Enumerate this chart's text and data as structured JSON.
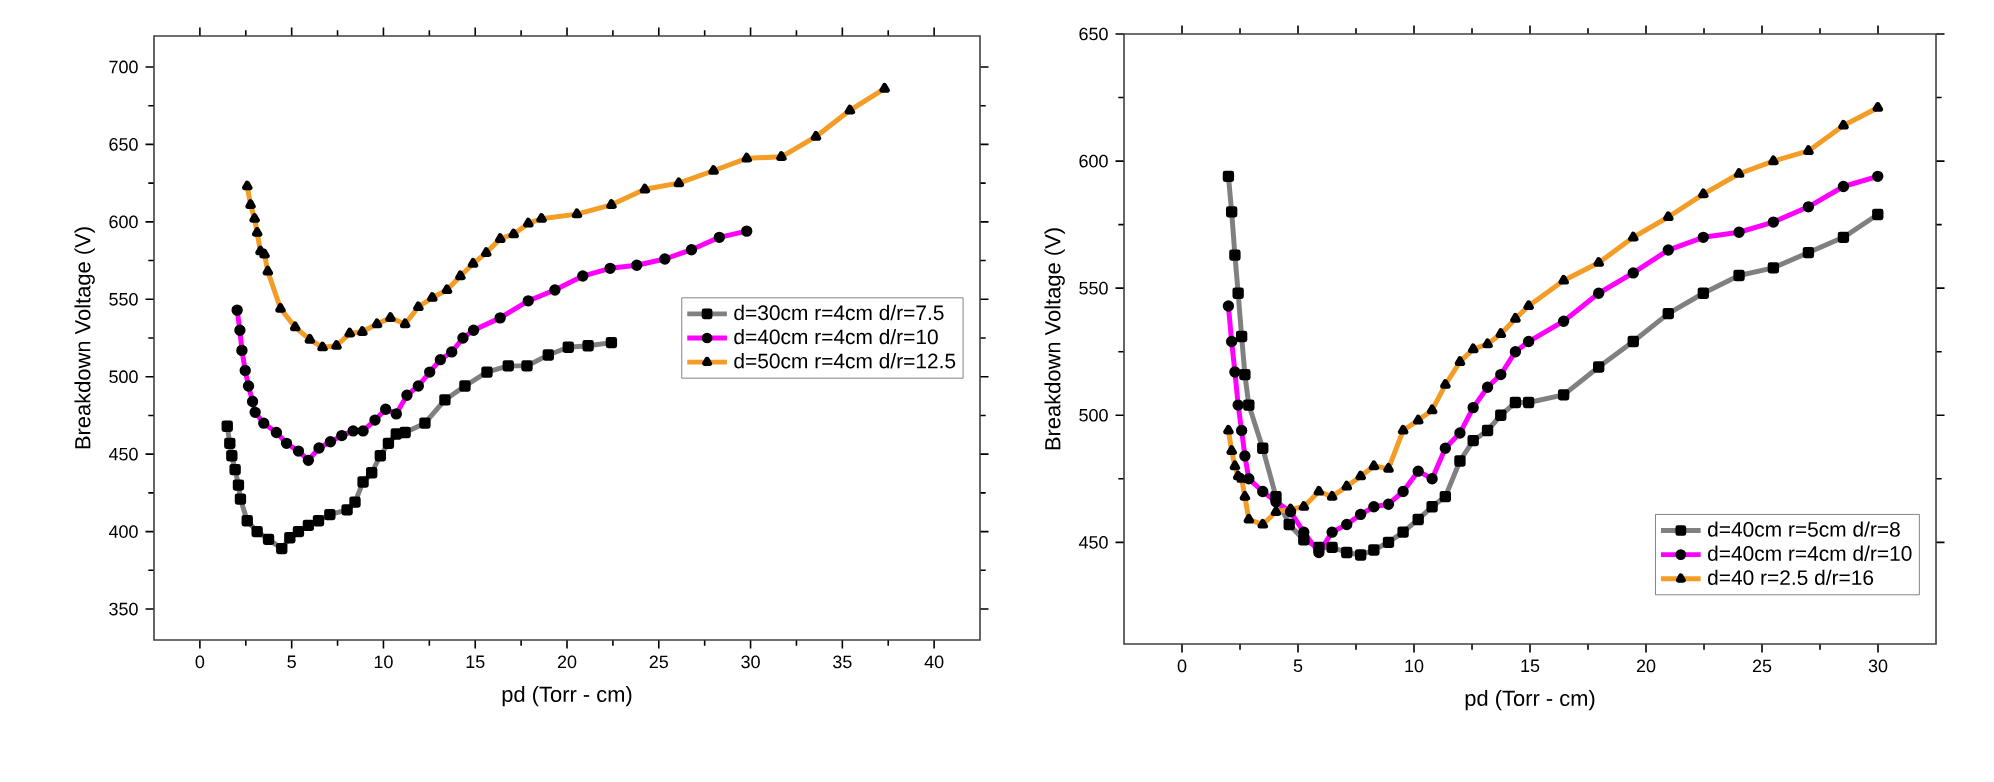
{
  "chart_data": [
    {
      "type": "line",
      "xlabel": "pd  (Torr - cm)",
      "ylabel": "Breakdown Voltage  (V)",
      "xlim": [
        -2.5,
        42.5
      ],
      "ylim": [
        330,
        720
      ],
      "xticks": [
        0,
        5,
        10,
        15,
        20,
        25,
        30,
        35,
        40
      ],
      "yticks": [
        350,
        400,
        450,
        500,
        550,
        600,
        650,
        700
      ],
      "legend": "right",
      "line_style": "solid",
      "series": [
        {
          "name": "d=30cm r=4cm d/r=7.5",
          "color": "#808080",
          "marker": "square",
          "x": [
            1.49,
            1.63,
            1.74,
            1.92,
            2.1,
            2.21,
            2.58,
            3.12,
            3.74,
            4.46,
            4.9,
            5.37,
            5.91,
            6.46,
            7.08,
            8.02,
            8.45,
            8.89,
            9.36,
            9.83,
            10.27,
            10.7,
            11.18,
            12.26,
            13.35,
            14.44,
            15.64,
            16.8,
            17.82,
            18.98,
            20.07,
            21.15,
            22.42
          ],
          "values": [
            468,
            457,
            449,
            440,
            430,
            421,
            407,
            400,
            395,
            389,
            396,
            400,
            404,
            407,
            411,
            414,
            419,
            432,
            438,
            449,
            457,
            463,
            464,
            470,
            485,
            494,
            503,
            507,
            507,
            514,
            519,
            520,
            522
          ]
        },
        {
          "name": "d=40cm r=4cm d/r=10",
          "color": "#ff00ff",
          "marker": "circle",
          "x": [
            2.03,
            2.18,
            2.29,
            2.47,
            2.65,
            2.87,
            3.01,
            3.48,
            4.17,
            4.72,
            5.37,
            5.91,
            6.49,
            7.11,
            7.73,
            8.35,
            8.89,
            9.54,
            10.12,
            10.7,
            11.28,
            11.9,
            12.52,
            13.1,
            13.72,
            14.33,
            14.91,
            16.36,
            17.89,
            19.34,
            20.86,
            22.35,
            23.8,
            25.33,
            26.78,
            28.3,
            29.79
          ],
          "values": [
            543,
            530,
            517,
            504,
            494,
            484,
            477,
            470,
            464,
            457,
            452,
            446,
            454,
            458,
            462,
            465,
            465,
            472,
            479,
            476,
            488,
            494,
            503,
            511,
            516,
            525,
            530,
            538,
            549,
            556,
            565,
            570,
            572,
            576,
            582,
            590,
            594
          ]
        },
        {
          "name": "d=50cm r=4cm d/r=12.5",
          "color": "#f39c26",
          "marker": "triangle",
          "x": [
            2.58,
            2.76,
            2.98,
            3.12,
            3.3,
            3.52,
            3.7,
            4.39,
            5.19,
            5.99,
            6.68,
            7.44,
            8.16,
            8.85,
            9.65,
            10.38,
            11.18,
            11.9,
            12.66,
            13.46,
            14.19,
            14.88,
            15.6,
            16.36,
            17.09,
            17.89,
            18.61,
            20.54,
            22.42,
            24.24,
            26.09,
            27.98,
            29.79,
            31.68,
            33.56,
            35.41,
            37.3
          ],
          "values": [
            623,
            611,
            602,
            593,
            581,
            579,
            568,
            544,
            532,
            524,
            519,
            520,
            528,
            529,
            534,
            538,
            534,
            545,
            551,
            556,
            565,
            573,
            580,
            589,
            592,
            599,
            602,
            605,
            611,
            621,
            625,
            633,
            641,
            642,
            655,
            672,
            686
          ]
        }
      ]
    },
    {
      "type": "line",
      "xlabel": "pd (Torr - cm)",
      "ylabel": "Breakdown Voltage (V)",
      "xlim": [
        -2.5,
        32.5
      ],
      "ylim": [
        410,
        650
      ],
      "xticks": [
        0,
        5,
        10,
        15,
        20,
        25,
        30
      ],
      "yticks": [
        450,
        500,
        550,
        600,
        650
      ],
      "legend": "bottom right",
      "line_style": "solid",
      "series": [
        {
          "name": "d=40cm r=5cm d/r=8",
          "color": "#808080",
          "marker": "square",
          "x": [
            2.0,
            2.14,
            2.28,
            2.42,
            2.57,
            2.71,
            2.88,
            3.48,
            4.05,
            4.62,
            5.25,
            5.9,
            6.47,
            7.1,
            7.7,
            8.27,
            8.9,
            9.53,
            10.18,
            10.78,
            11.35,
            11.98,
            12.55,
            13.17,
            13.74,
            14.37,
            14.94,
            16.45,
            17.96,
            19.45,
            20.96,
            22.47,
            24.01,
            25.49,
            27.0,
            28.51,
            29.99
          ],
          "values": [
            594,
            580,
            563,
            548,
            531,
            516,
            504,
            487,
            468,
            457,
            451,
            448,
            448,
            446,
            445,
            447,
            450,
            454,
            459,
            464,
            468,
            482,
            490,
            494,
            500,
            505,
            505,
            508,
            519,
            529,
            540,
            548,
            555,
            558,
            564,
            570,
            579
          ]
        },
        {
          "name": "d=40cm r=4cm d/r=10",
          "color": "#ff00ff",
          "marker": "circle",
          "x": [
            2.0,
            2.14,
            2.28,
            2.42,
            2.57,
            2.71,
            2.88,
            3.48,
            4.05,
            4.68,
            5.25,
            5.9,
            6.47,
            7.1,
            7.7,
            8.27,
            8.9,
            9.53,
            10.18,
            10.78,
            11.35,
            11.98,
            12.55,
            13.17,
            13.74,
            14.37,
            14.94,
            16.45,
            17.96,
            19.45,
            20.96,
            22.47,
            24.01,
            25.49,
            27.0,
            28.51,
            29.99
          ],
          "values": [
            543,
            529,
            517,
            504,
            494,
            484,
            475,
            470,
            466,
            462,
            454,
            446,
            454,
            457,
            461,
            464,
            465,
            470,
            478,
            475,
            487,
            493,
            503,
            511,
            516,
            525,
            529,
            537,
            548,
            556,
            565,
            570,
            572,
            576,
            582,
            590,
            594
          ]
        },
        {
          "name": "d=40 r=2.5 d/r=16",
          "color": "#f39c26",
          "marker": "triangle",
          "x": [
            2.0,
            2.14,
            2.28,
            2.42,
            2.57,
            2.71,
            2.88,
            3.48,
            4.05,
            4.68,
            5.25,
            5.9,
            6.47,
            7.1,
            7.7,
            8.27,
            8.9,
            9.53,
            10.18,
            10.78,
            11.35,
            11.98,
            12.55,
            13.17,
            13.74,
            14.37,
            14.94,
            16.45,
            17.96,
            19.45,
            20.96,
            22.47,
            24.01,
            25.49,
            27.0,
            28.51,
            29.99
          ],
          "values": [
            494,
            486,
            480,
            476,
            475,
            468,
            459,
            457,
            462,
            463,
            464,
            470,
            468,
            472,
            476,
            480,
            479,
            494,
            498,
            502,
            512,
            521,
            526,
            528,
            532,
            538,
            543,
            553,
            560,
            570,
            578,
            587,
            595,
            600,
            604,
            614,
            621
          ]
        }
      ]
    }
  ]
}
